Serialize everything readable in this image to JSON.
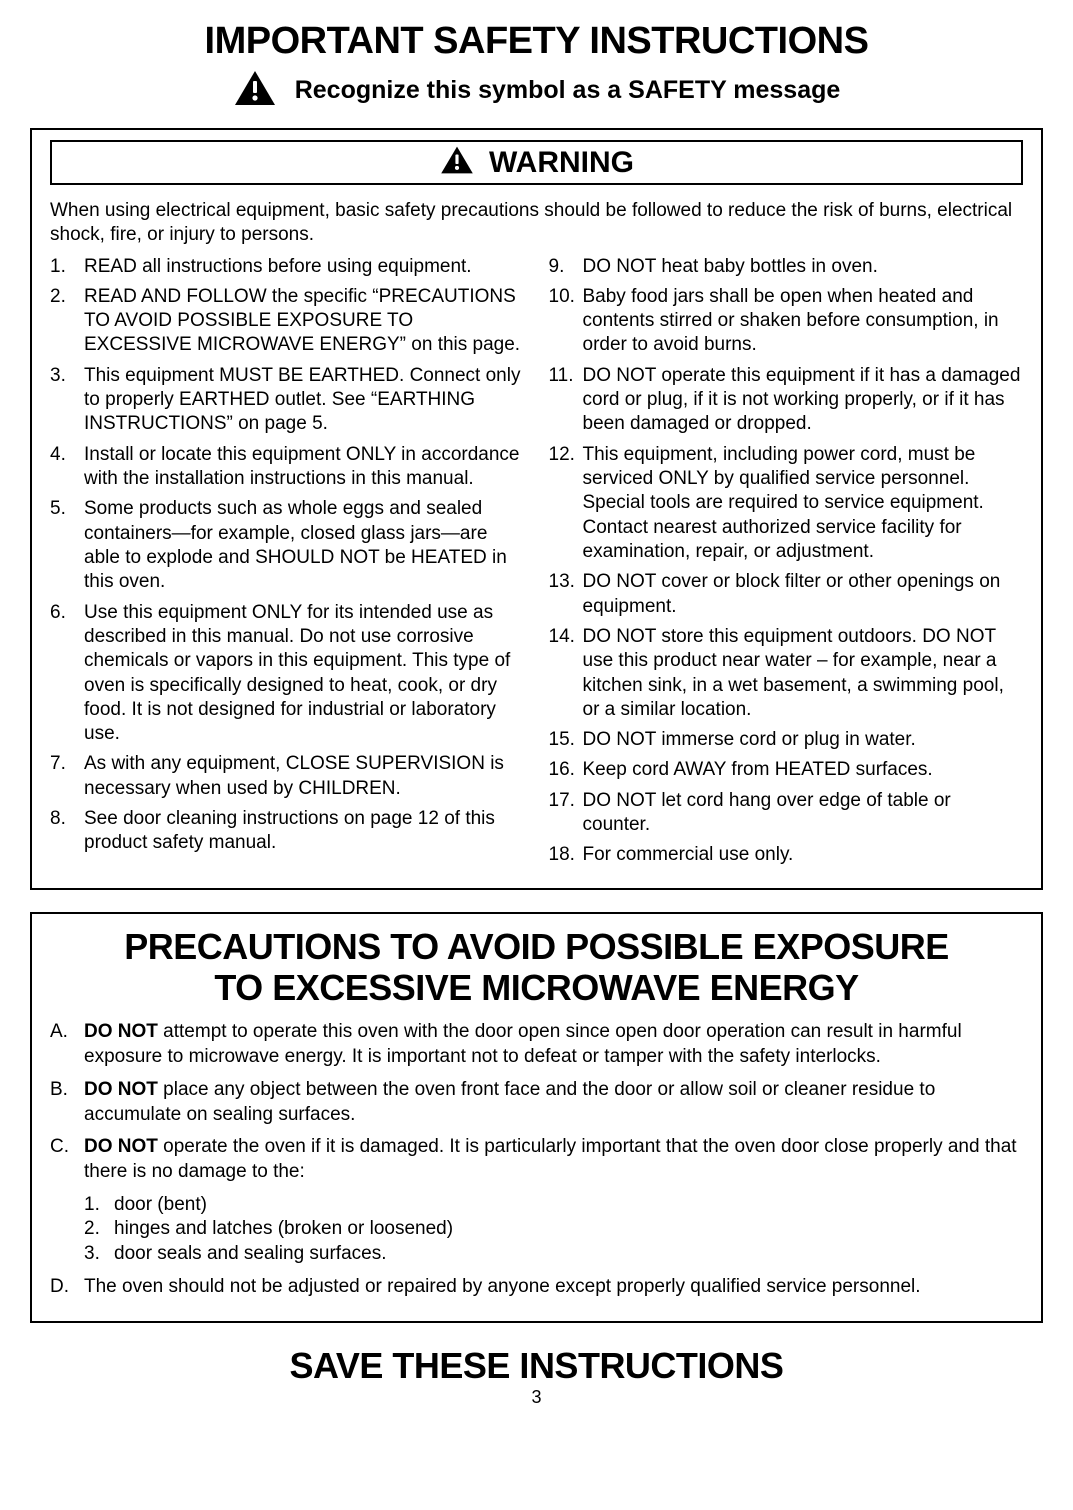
{
  "page": {
    "title": "IMPORTANT SAFETY INSTRUCTIONS",
    "subtitle": "Recognize this symbol as a SAFETY message",
    "page_number": "3",
    "save_instructions": "SAVE THESE INSTRUCTIONS"
  },
  "colors": {
    "text": "#000000",
    "background": "#ffffff",
    "border": "#000000"
  },
  "typography": {
    "title_size_pt": 38,
    "subtitle_size_pt": 25,
    "warning_label_size_pt": 30,
    "body_size_pt": 19,
    "precautions_title_size_pt": 36,
    "save_size_pt": 36
  },
  "warning_box": {
    "label": "WARNING",
    "intro": "When using electrical equipment, basic safety precautions should be followed to reduce the risk of burns, electrical shock, fire, or injury to persons.",
    "items_left": [
      {
        "n": "1.",
        "text": "READ all instructions before using equipment."
      },
      {
        "n": "2.",
        "text": "READ AND FOLLOW the specific “PRECAUTIONS TO AVOID POSSIBLE EXPOSURE TO EXCESSIVE MICROWAVE ENERGY” on this page."
      },
      {
        "n": "3.",
        "text": "This equipment MUST BE EARTHED. Connect only to properly EARTHED outlet. See “EARTHING INSTRUCTIONS” on page  5."
      },
      {
        "n": "4.",
        "text": "Install or locate this equipment ONLY in accordance with the installation instructions in this manual."
      },
      {
        "n": "5.",
        "text": "Some products such as whole eggs and sealed containers—for example, closed glass jars—are able to explode and SHOULD NOT be HEATED in this oven."
      },
      {
        "n": "6.",
        "text": "Use this equipment ONLY for its intended use as described in this manual. Do not use corrosive chemicals or vapors in this equipment. This type of oven is specifically designed to heat, cook, or dry food. It is not designed for industrial or laboratory use."
      },
      {
        "n": "7.",
        "text": "As with any equipment, CLOSE SUPERVISION is necessary when used by CHILDREN."
      },
      {
        "n": "8.",
        "text": "See door cleaning instructions on page 12 of this product safety manual."
      }
    ],
    "items_right": [
      {
        "n": "9.",
        "text": "DO NOT heat baby bottles in oven."
      },
      {
        "n": "10.",
        "text": "Baby food jars shall be open when heated and contents stirred or shaken before consumption, in order to avoid burns."
      },
      {
        "n": "11.",
        "text": "DO NOT operate this equipment if it has a damaged cord or plug, if it is not working properly, or if it has been damaged or dropped."
      },
      {
        "n": "12.",
        "text": "This equipment, including power cord, must be serviced ONLY by qualified service personnel. Special tools are required to service equipment. Contact nearest authorized service facility for examination, repair, or adjustment."
      },
      {
        "n": "13.",
        "text": "DO NOT cover or block filter or other openings on equipment."
      },
      {
        "n": "14.",
        "text": "DO NOT store this equipment outdoors. DO NOT use this product near water – for example, near a kitchen sink, in a wet basement, a swimming pool, or a similar location."
      },
      {
        "n": "15.",
        "text": "DO NOT immerse cord or plug in water."
      },
      {
        "n": "16.",
        "text": "Keep cord AWAY from HEATED surfaces."
      },
      {
        "n": "17.",
        "text": "DO NOT let cord hang over edge of table or counter."
      },
      {
        "n": "18.",
        "text": "For commercial use only."
      }
    ]
  },
  "precautions_box": {
    "title_line1": "PRECAUTIONS TO AVOID POSSIBLE EXPOSURE",
    "title_line2": "TO EXCESSIVE MICROWAVE ENERGY",
    "items": [
      {
        "letter": "A.",
        "bold_lead": "DO NOT",
        "rest": " attempt to operate this oven with the door open since open door operation can result in harmful exposure to microwave energy. It is important not to defeat or tamper with the safety interlocks."
      },
      {
        "letter": "B.",
        "bold_lead": "DO NOT",
        "rest": " place any object between the oven front face and the door or allow soil or cleaner residue to accumulate on sealing surfaces."
      },
      {
        "letter": "C.",
        "bold_lead": "DO NOT",
        "rest": " operate the oven if it is damaged. It is particularly important that the oven door close properly and that there is no damage to the:"
      },
      {
        "letter": "D.",
        "bold_lead": "",
        "rest": "The oven should not be adjusted or repaired by anyone except properly qualified service personnel."
      }
    ],
    "sub_items": [
      {
        "n": "1.",
        "text": "door (bent)"
      },
      {
        "n": "2.",
        "text": "hinges and latches (broken or loosened)"
      },
      {
        "n": "3.",
        "text": "door seals and sealing surfaces."
      }
    ]
  }
}
